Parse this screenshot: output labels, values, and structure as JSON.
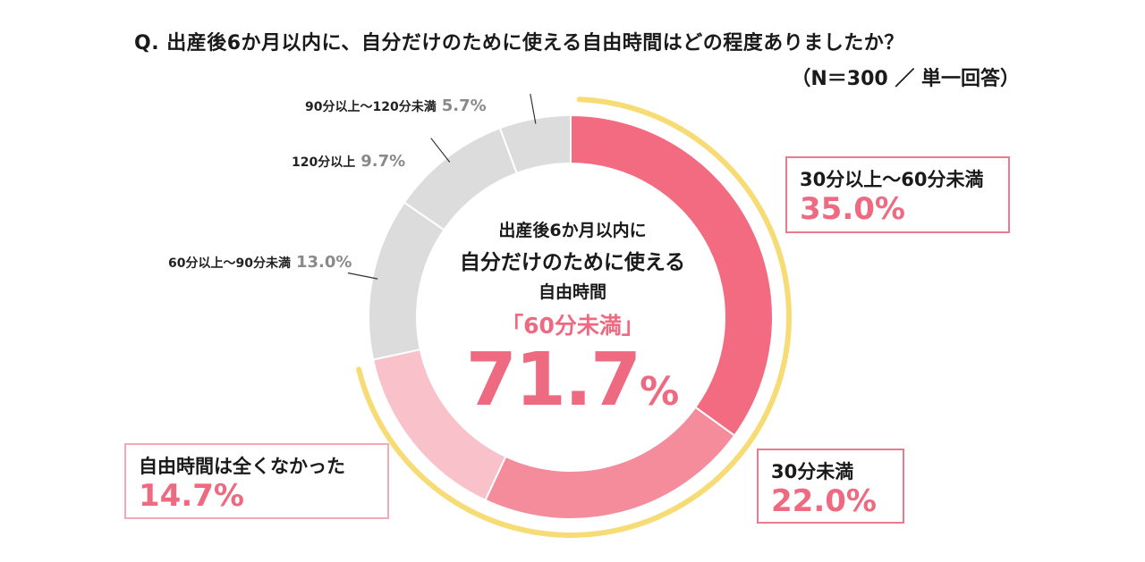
{
  "question": "Q. 出産後6か月以内に、自分だけのために使える自由時間はどの程度ありましたか？",
  "note": "（N＝300 ／ 単一回答）",
  "center": {
    "line1": "出産後6か月以内に",
    "line2": "自分だけのために使える",
    "line3": "自由時間",
    "line4": "「60分未満」",
    "big_value": "71.7",
    "big_unit": "%"
  },
  "chart_data": {
    "type": "pie",
    "donut": true,
    "categories": [
      "30分以上～60分未満",
      "30分未満",
      "自由時間は全くなかった",
      "60分以上～90分未満",
      "120分以上",
      "90分以上～120分未満"
    ],
    "values": [
      35.0,
      22.0,
      14.7,
      13.0,
      9.7,
      5.7
    ],
    "labels": [
      "35.0%",
      "22.0%",
      "14.7%",
      "13.0%",
      "9.7%",
      "5.7%"
    ],
    "colors": [
      "#f26b80",
      "#f48c9b",
      "#f9c1c9",
      "#dcdcdc",
      "#dcdcdc",
      "#dcdcdc"
    ],
    "highlight_arc": {
      "from": 0,
      "to": 71.7,
      "color": "#f7dc75"
    },
    "highlight_text": "「60分未満」71.7%"
  }
}
